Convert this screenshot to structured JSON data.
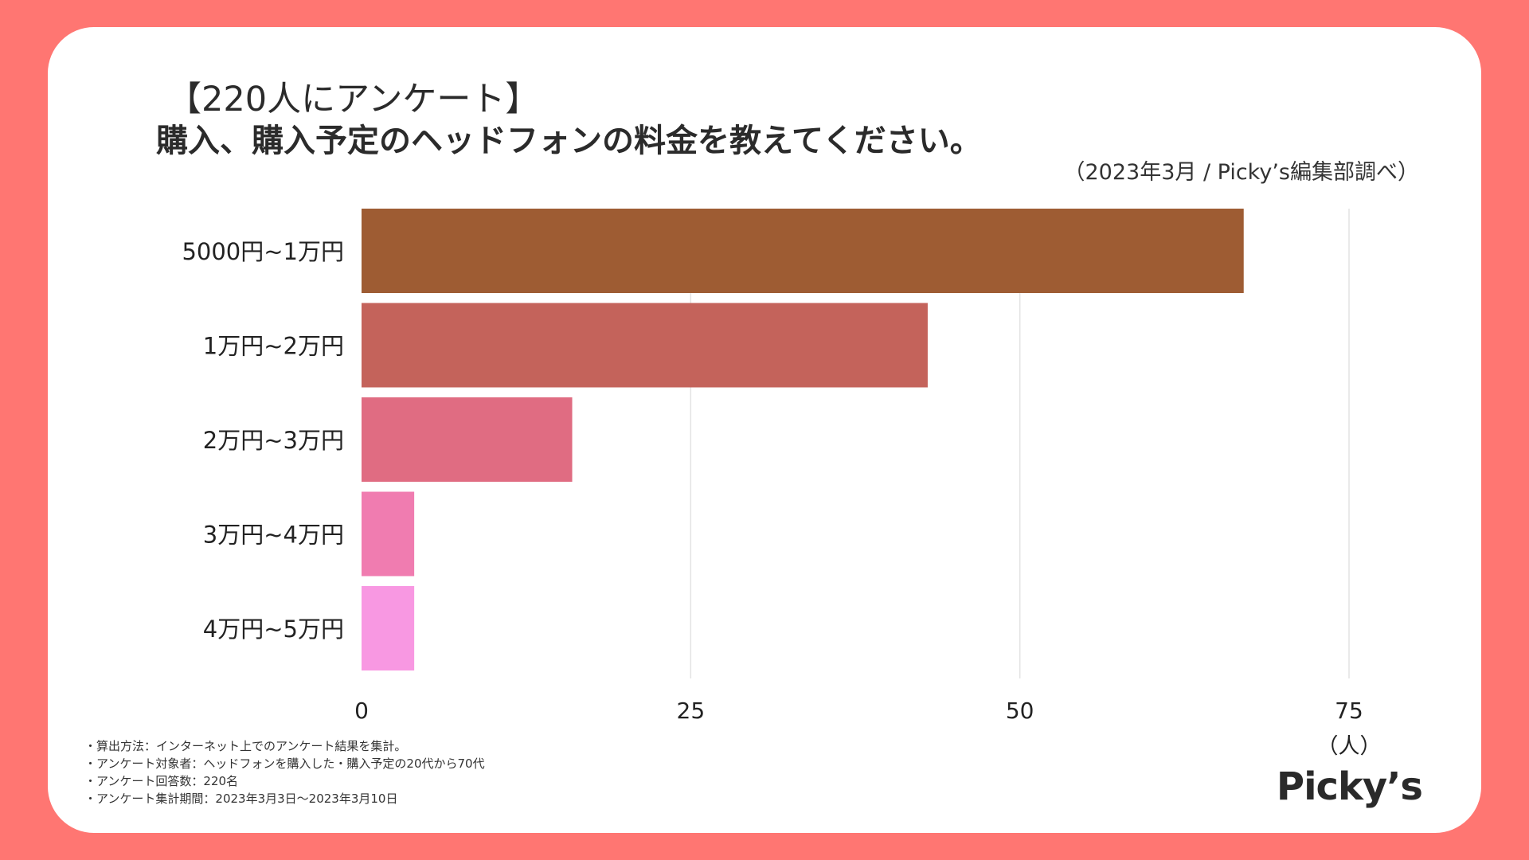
{
  "header": {
    "survey_tag": "【220人にアンケート】",
    "question": "購入、購入予定のヘッドフォンの料金を教えてください。",
    "source": "（2023年3月 / Picky’s編集部調べ）"
  },
  "colors": {
    "background": "#ff7672",
    "card": "#ffffff",
    "grid": "#e3e3e3"
  },
  "chart_data": {
    "type": "bar",
    "orientation": "horizontal",
    "categories": [
      "5000円~1万円",
      "1万円~2万円",
      "2万円~3万円",
      "3万円~4万円",
      "4万円~5万円"
    ],
    "values": [
      67,
      43,
      16,
      4,
      4
    ],
    "bar_colors": [
      "#9e5c33",
      "#c4635b",
      "#e06c82",
      "#f07cb0",
      "#f898e2"
    ],
    "xlim": [
      0,
      75
    ],
    "xticks": [
      0,
      25,
      50,
      75
    ],
    "tick_labels": [
      "0",
      "25",
      "50",
      "75"
    ],
    "unit_label": "（人）",
    "grid": true
  },
  "notes": [
    "・算出方法：インターネット上でのアンケート結果を集計。",
    "・アンケート対象者：ヘッドフォンを購入した・購入予定の20代から70代",
    "・アンケート回答数：220名",
    "・アンケート集計期間：2023年3月3日〜2023年3月10日"
  ],
  "brand": {
    "logo_text": "Picky’s"
  }
}
